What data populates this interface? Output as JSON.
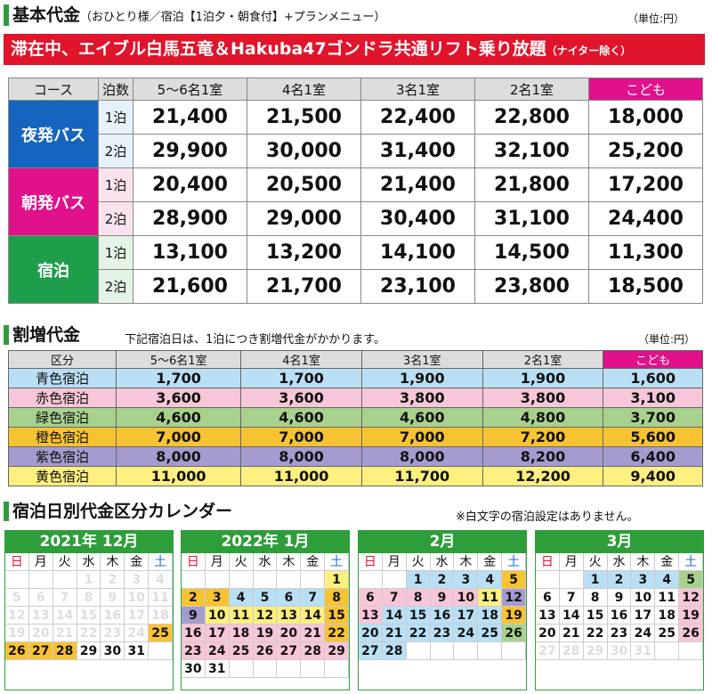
{
  "sec1": {
    "title": "基本代金",
    "subtitle": "（おひとり様／宿泊【1泊夕・朝食付】+プランメニュー）",
    "unit": "（単位:円）"
  },
  "banner": {
    "text": "滞在中、エイブル白馬五竜＆Hakuba47ゴンドラ共通リフト乗り放題",
    "note": "（ナイター除く）"
  },
  "table1": {
    "headers": [
      "コース",
      "泊数",
      "5～6名1室",
      "4名1室",
      "3名1室",
      "2名1室",
      "こども"
    ],
    "courses": [
      {
        "name": "夜発バス",
        "color": "#1565c0",
        "rows": [
          {
            "nights": "1泊",
            "values": [
              "21,400",
              "21,500",
              "22,400",
              "22,800",
              "18,000"
            ]
          },
          {
            "nights": "2泊",
            "values": [
              "29,900",
              "30,000",
              "31,400",
              "32,100",
              "25,200"
            ]
          }
        ]
      },
      {
        "name": "朝発バス",
        "color": "#e0118a",
        "rows": [
          {
            "nights": "1泊",
            "values": [
              "20,400",
              "20,500",
              "21,400",
              "21,800",
              "17,200"
            ]
          },
          {
            "nights": "2泊",
            "values": [
              "28,900",
              "29,000",
              "30,400",
              "31,100",
              "24,400"
            ]
          }
        ]
      },
      {
        "name": "宿泊",
        "color": "#1e9e4a",
        "rows": [
          {
            "nights": "1泊",
            "values": [
              "13,100",
              "13,200",
              "14,100",
              "14,500",
              "11,300"
            ]
          },
          {
            "nights": "2泊",
            "values": [
              "21,600",
              "21,700",
              "23,100",
              "23,800",
              "18,500"
            ]
          }
        ]
      }
    ]
  },
  "sec2": {
    "title": "割増代金",
    "subtitle": "下記宿泊日は、1泊につき割増代金がかかります。",
    "unit": "（単位:円）"
  },
  "table2": {
    "headers": [
      "区分",
      "5～6名1室",
      "4名1室",
      "3名1室",
      "2名1室",
      "こども"
    ],
    "rows": [
      {
        "label": "青色宿泊",
        "bg": "#b9dff5",
        "values": [
          "1,700",
          "1,700",
          "1,900",
          "1,900",
          "1,600"
        ]
      },
      {
        "label": "赤色宿泊",
        "bg": "#f7c6d8",
        "values": [
          "3,600",
          "3,600",
          "3,800",
          "3,800",
          "3,100"
        ]
      },
      {
        "label": "緑色宿泊",
        "bg": "#a9d18e",
        "values": [
          "4,600",
          "4,600",
          "4,600",
          "4,800",
          "3,700"
        ]
      },
      {
        "label": "橙色宿泊",
        "bg": "#f8c333",
        "values": [
          "7,000",
          "7,000",
          "7,000",
          "7,200",
          "5,600"
        ]
      },
      {
        "label": "紫色宿泊",
        "bg": "#a69bd0",
        "values": [
          "8,000",
          "8,000",
          "8,000",
          "8,200",
          "6,400"
        ]
      },
      {
        "label": "黄色宿泊",
        "bg": "#fdf07e",
        "values": [
          "11,000",
          "11,000",
          "11,700",
          "12,200",
          "9,400"
        ]
      }
    ]
  },
  "sec3": {
    "title": "宿泊日別代金区分カレンダー",
    "note": "※白文字の宿泊設定はありません。"
  },
  "weekdays": [
    "日",
    "月",
    "火",
    "水",
    "木",
    "金",
    "土"
  ],
  "calendars": [
    {
      "title": "2021年 12月",
      "cells": [
        "",
        "",
        "",
        "1w",
        "2w",
        "3w",
        "4w",
        "5w",
        "6w",
        "7w",
        "8w",
        "9w",
        "10w",
        "11w",
        "12w",
        "13w",
        "14w",
        "15w",
        "16w",
        "17w",
        "18w",
        "19w",
        "20w",
        "21w",
        "22w",
        "23w",
        "24w",
        "25o",
        "26o",
        "27o",
        "28o",
        "29",
        "30",
        "31",
        ""
      ]
    },
    {
      "title": "2022年 1月",
      "cells": [
        "",
        "",
        "",
        "",
        "",
        "",
        "1y",
        "2o",
        "3o",
        "4b",
        "5b",
        "6b",
        "7b",
        "8o",
        "9u",
        "10y",
        "11y",
        "12y",
        "13y",
        "14y",
        "15o",
        "16p",
        "17p",
        "18p",
        "19p",
        "20p",
        "21p",
        "22o",
        "23p",
        "24p",
        "25p",
        "26p",
        "27p",
        "28p",
        "29p",
        "30",
        "31",
        "",
        "",
        "",
        "",
        ""
      ]
    },
    {
      "title": "2月",
      "cells": [
        "",
        "",
        "1b",
        "2b",
        "3b",
        "4b",
        "5o",
        "6p",
        "7p",
        "8p",
        "9p",
        "10p",
        "11y",
        "12u",
        "13p",
        "14b",
        "15b",
        "16b",
        "17b",
        "18b",
        "19o",
        "20b",
        "21b",
        "22b",
        "23b",
        "24b",
        "25b",
        "26g",
        "27b",
        "28b",
        "",
        "",
        "",
        "",
        ""
      ]
    },
    {
      "title": "3月",
      "cells": [
        "",
        "",
        "1b",
        "2b",
        "3b",
        "4b",
        "5g",
        "6",
        "7",
        "8",
        "9",
        "10",
        "11",
        "12p",
        "13",
        "14",
        "15",
        "16",
        "17",
        "18",
        "19p",
        "20",
        "21",
        "22",
        "23",
        "24",
        "25",
        "26p",
        "27w",
        "28w",
        "29w",
        "30w",
        "31w",
        "",
        ""
      ]
    }
  ]
}
